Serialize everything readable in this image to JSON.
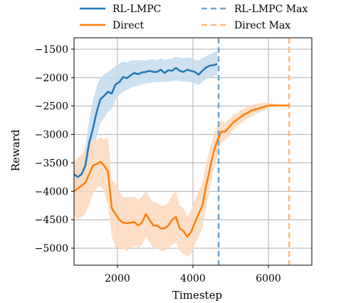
{
  "chart_data": {
    "type": "line",
    "title": "",
    "xlabel": "Timestep",
    "ylabel": "Reward",
    "xlim": [
      850,
      7150
    ],
    "ylim": [
      -5300,
      -1300
    ],
    "x_ticks": [
      2000,
      4000,
      6000
    ],
    "y_ticks": [
      -1500,
      -2000,
      -2500,
      -3000,
      -3500,
      -4000,
      -4500,
      -5000
    ],
    "grid": true,
    "legend": {
      "placement": "top, outside the axes, two columns",
      "entries": [
        "RL-LMPC",
        "Direct",
        "RL-LMPC Max",
        "Direct Max"
      ]
    },
    "series": [
      {
        "name": "RL-LMPC",
        "color": "#1f77b4",
        "band_color": "#c4dcee",
        "x": [
          850,
          950,
          1050,
          1150,
          1250,
          1350,
          1450,
          1550,
          1650,
          1750,
          1850,
          1950,
          2050,
          2150,
          2250,
          2350,
          2450,
          2550,
          2650,
          2750,
          2850,
          2950,
          3050,
          3150,
          3250,
          3350,
          3450,
          3550,
          3650,
          3750,
          3850,
          3950,
          4050,
          4150,
          4250,
          4350,
          4450,
          4550,
          4650
        ],
        "y": [
          -3700,
          -3750,
          -3700,
          -3550,
          -3150,
          -2900,
          -2600,
          -2380,
          -2320,
          -2250,
          -2280,
          -2120,
          -2080,
          -1990,
          -2010,
          -1960,
          -1920,
          -1940,
          -1910,
          -1900,
          -1880,
          -1900,
          -1900,
          -1860,
          -1920,
          -1870,
          -1880,
          -1830,
          -1880,
          -1900,
          -1860,
          -1880,
          -1900,
          -1950,
          -1880,
          -1820,
          -1790,
          -1780,
          -1760
        ],
        "lower": [
          -3950,
          -4000,
          -3900,
          -3800,
          -3500,
          -3300,
          -3050,
          -2800,
          -2700,
          -2600,
          -2550,
          -2400,
          -2300,
          -2250,
          -2220,
          -2180,
          -2150,
          -2150,
          -2120,
          -2100,
          -2100,
          -2080,
          -2080,
          -2070,
          -2080,
          -2070,
          -2060,
          -2050,
          -2060,
          -2070,
          -2070,
          -2080,
          -2100,
          -2130,
          -2080,
          -2020,
          -2000,
          -1980,
          -1950
        ],
        "upper": [
          -3450,
          -3500,
          -3450,
          -3200,
          -2750,
          -2400,
          -2150,
          -2000,
          -1950,
          -1900,
          -1850,
          -1800,
          -1750,
          -1720,
          -1730,
          -1700,
          -1690,
          -1700,
          -1690,
          -1700,
          -1680,
          -1680,
          -1690,
          -1660,
          -1690,
          -1670,
          -1660,
          -1630,
          -1650,
          -1660,
          -1650,
          -1660,
          -1680,
          -1700,
          -1660,
          -1620,
          -1590,
          -1560,
          -1540
        ]
      },
      {
        "name": "Direct",
        "color": "#ff7f0e",
        "band_color": "#fdd9bd",
        "x": [
          850,
          950,
          1050,
          1150,
          1250,
          1350,
          1450,
          1550,
          1650,
          1750,
          1850,
          1950,
          2050,
          2150,
          2250,
          2350,
          2450,
          2550,
          2650,
          2750,
          2850,
          2950,
          3050,
          3150,
          3250,
          3350,
          3450,
          3550,
          3650,
          3750,
          3850,
          3950,
          4050,
          4150,
          4250,
          4350,
          4450,
          4550,
          4650,
          4750,
          4850,
          4950,
          5050,
          5150,
          5250,
          5350,
          5450,
          5550,
          5650,
          5750,
          5850,
          5950,
          6050,
          6150,
          6250,
          6350,
          6450,
          6550
        ],
        "y": [
          -4000,
          -3950,
          -3900,
          -3850,
          -3700,
          -3550,
          -3520,
          -3480,
          -3550,
          -3650,
          -4300,
          -4400,
          -4500,
          -4550,
          -4560,
          -4550,
          -4540,
          -4600,
          -4550,
          -4400,
          -4500,
          -4600,
          -4600,
          -4650,
          -4650,
          -4600,
          -4500,
          -4450,
          -4650,
          -4700,
          -4800,
          -4720,
          -4550,
          -4400,
          -4250,
          -3900,
          -3600,
          -3300,
          -3100,
          -2950,
          -2950,
          -2880,
          -2800,
          -2750,
          -2700,
          -2650,
          -2620,
          -2580,
          -2560,
          -2540,
          -2520,
          -2500,
          -2490,
          -2490,
          -2490,
          -2490,
          -2490,
          -2490
        ],
        "lower": [
          -4400,
          -4500,
          -4450,
          -4400,
          -4250,
          -4050,
          -3950,
          -3900,
          -4000,
          -4250,
          -4800,
          -5000,
          -5000,
          -5000,
          -5050,
          -5000,
          -4950,
          -5000,
          -4950,
          -4800,
          -4900,
          -5000,
          -5000,
          -5050,
          -5050,
          -5000,
          -4950,
          -4900,
          -5050,
          -5100,
          -5150,
          -5100,
          -4950,
          -4800,
          -4650,
          -4300,
          -3950,
          -3600,
          -3350,
          -3150,
          -3100,
          -3030,
          -2940,
          -2880,
          -2820,
          -2760,
          -2720,
          -2680,
          -2650,
          -2620,
          -2590,
          -2560,
          -2530,
          -2520,
          -2510,
          -2505,
          -2500,
          -2500
        ],
        "upper": [
          -3500,
          -3400,
          -3350,
          -3300,
          -3200,
          -3100,
          -3100,
          -3050,
          -3100,
          -3050,
          -3800,
          -3850,
          -4000,
          -4100,
          -4100,
          -4100,
          -4100,
          -4150,
          -4100,
          -4000,
          -4100,
          -4200,
          -4200,
          -4250,
          -4250,
          -4200,
          -4050,
          -4000,
          -4250,
          -4300,
          -4450,
          -4350,
          -4150,
          -4000,
          -3850,
          -3500,
          -3250,
          -3000,
          -2850,
          -2750,
          -2800,
          -2730,
          -2660,
          -2620,
          -2580,
          -2540,
          -2520,
          -2480,
          -2470,
          -2460,
          -2450,
          -2440,
          -2450,
          -2460,
          -2470,
          -2475,
          -2480,
          -2480
        ]
      }
    ],
    "vertical_lines": [
      {
        "name": "RL-LMPC Max",
        "x": 4680,
        "color": "#6fa6cf"
      },
      {
        "name": "Direct Max",
        "x": 6550,
        "color": "#ffb97a"
      }
    ]
  }
}
